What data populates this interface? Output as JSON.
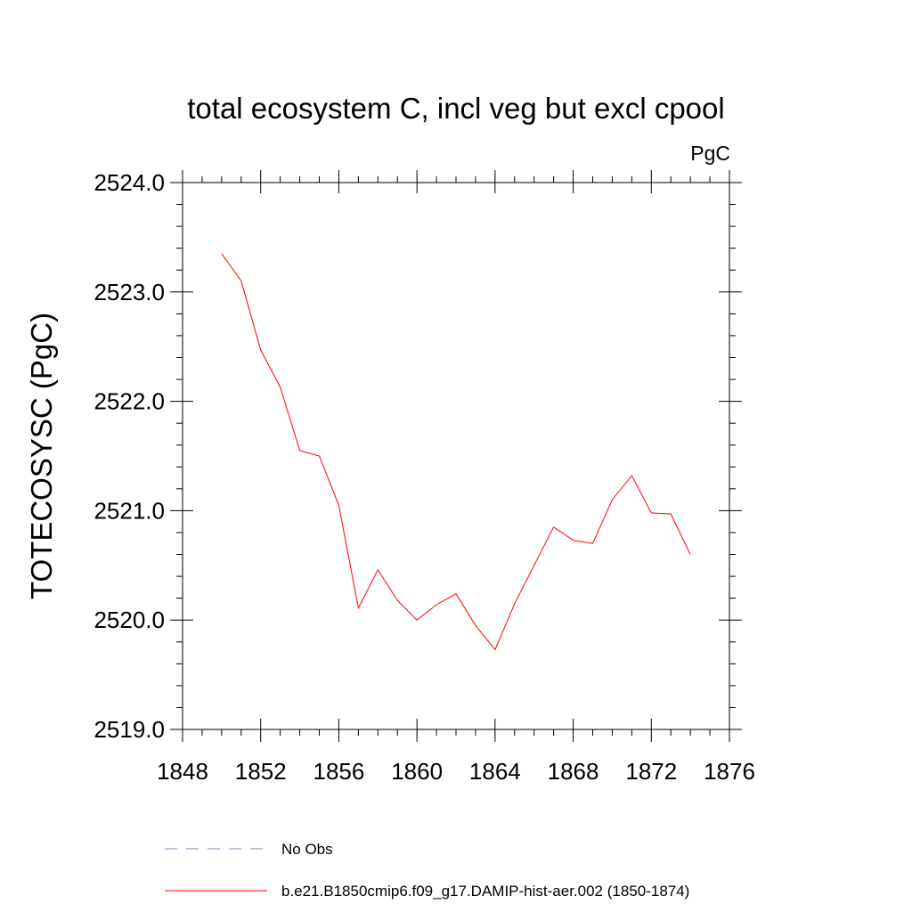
{
  "chart_data": {
    "type": "line",
    "title": "total ecosystem C, incl veg but excl cpool",
    "units_label": "PgC",
    "ylabel": "TOTECOSYSC  (PgC)",
    "xlabel": "",
    "xlim": [
      1848,
      1876
    ],
    "ylim": [
      2519.0,
      2524.0
    ],
    "x_ticks": [
      1848,
      1852,
      1856,
      1860,
      1864,
      1868,
      1872,
      1876
    ],
    "y_ticks": [
      "2519.0",
      "2520.0",
      "2521.0",
      "2522.0",
      "2523.0",
      "2524.0"
    ],
    "grid": false,
    "legend_placement": "bottom",
    "series": [
      {
        "name": "b.e21.B1850cmip6.f09_g17.DAMIP-hist-aer.002 (1850-1874)",
        "color": "#ff0000",
        "style": "solid",
        "x": [
          1850,
          1851,
          1852,
          1853,
          1854,
          1855,
          1856,
          1857,
          1858,
          1859,
          1860,
          1861,
          1862,
          1863,
          1864,
          1865,
          1866,
          1867,
          1868,
          1869,
          1870,
          1871,
          1872,
          1873,
          1874
        ],
        "values": [
          2523.35,
          2523.1,
          2522.47,
          2522.13,
          2521.55,
          2521.5,
          2521.05,
          2520.11,
          2520.46,
          2520.18,
          2520.0,
          2520.14,
          2520.24,
          2519.95,
          2519.73,
          2520.15,
          2520.5,
          2520.85,
          2520.73,
          2520.7,
          2521.1,
          2521.32,
          2520.98,
          2520.97,
          2520.6
        ]
      }
    ],
    "legend": [
      {
        "label": "No Obs",
        "color": "#8080c0",
        "style": "dashed"
      },
      {
        "label": "b.e21.B1850cmip6.f09_g17.DAMIP-hist-aer.002 (1850-1874)",
        "color": "#ff0000",
        "style": "solid"
      }
    ]
  }
}
